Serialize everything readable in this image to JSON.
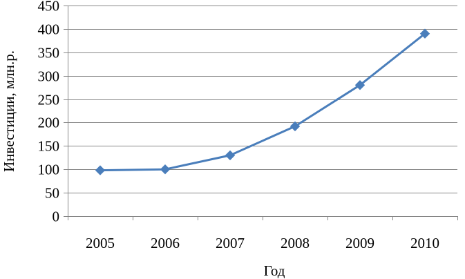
{
  "chart_data": {
    "type": "line",
    "title": "",
    "xlabel": "Год",
    "ylabel": "Инвестиции, млн.р.",
    "categories": [
      "2005",
      "2006",
      "2007",
      "2008",
      "2009",
      "2010"
    ],
    "series": [
      {
        "values": [
          98,
          100,
          130,
          192,
          280,
          390
        ],
        "color": "#4A7EBB",
        "marker": "diamond"
      }
    ],
    "ylim": [
      0,
      450
    ],
    "yticks": [
      0,
      50,
      100,
      150,
      200,
      250,
      300,
      350,
      400,
      450
    ],
    "grid": true,
    "legend": "none"
  }
}
